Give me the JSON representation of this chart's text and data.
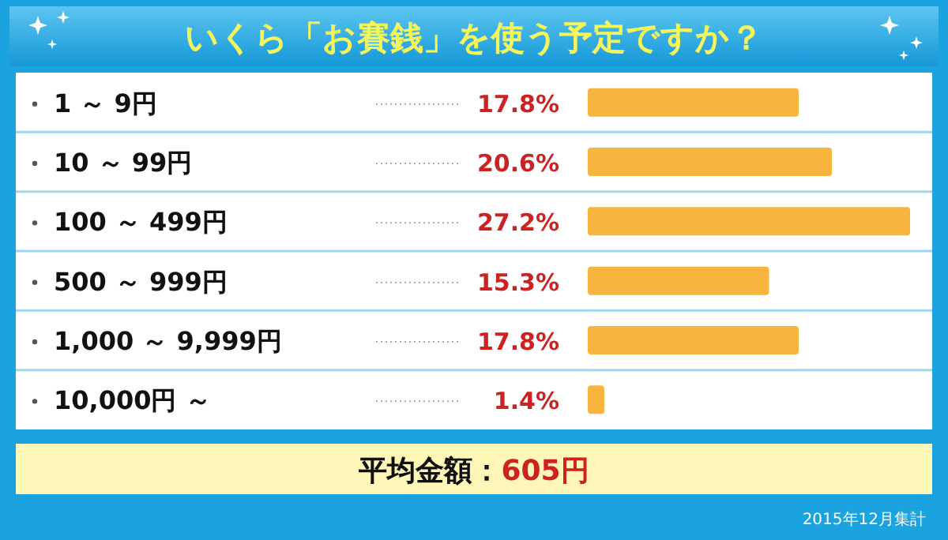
{
  "chart_data": {
    "type": "bar",
    "orientation": "horizontal",
    "title": "いくら「お賽銭」を使う予定ですか？",
    "categories": [
      "1 ～ 9円",
      "10 ～ 99円",
      "100 ～ 499円",
      "500 ～ 999円",
      "1,000 ～ 9,999円",
      "10,000円 ～"
    ],
    "values": [
      17.8,
      20.6,
      27.2,
      15.3,
      17.8,
      1.4
    ],
    "value_labels": [
      "17.8%",
      "20.6%",
      "27.2%",
      "15.3%",
      "17.8%",
      "1.4%"
    ],
    "color": "#f7b540",
    "annotations": [
      "平均金額：605円",
      "2015年12月集計"
    ]
  }
}
